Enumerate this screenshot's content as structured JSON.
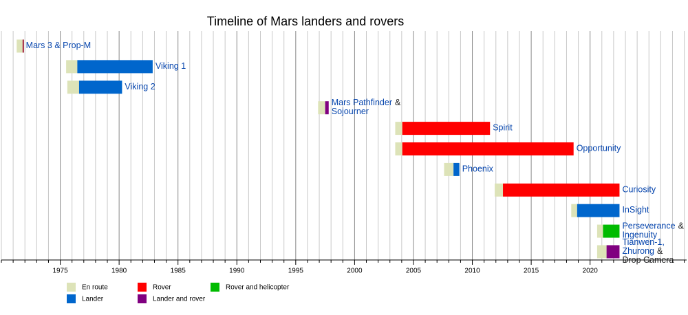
{
  "chart_data": {
    "type": "timeline",
    "title": "Timeline of Mars landers and rovers",
    "xlim": [
      1970,
      2028.2
    ],
    "xticks": [
      1975,
      1980,
      1985,
      1990,
      1995,
      2000,
      2005,
      2010,
      2015,
      2020
    ],
    "minor_xticks": [
      1970,
      1971,
      1972,
      1973,
      1974,
      1976,
      1977,
      1978,
      1979,
      1981,
      1982,
      1983,
      1984,
      1986,
      1987,
      1988,
      1989,
      1991,
      1992,
      1993,
      1994,
      1996,
      1997,
      1998,
      1999,
      2001,
      2002,
      2003,
      2004,
      2006,
      2007,
      2008,
      2009,
      2011,
      2012,
      2013,
      2014,
      2016,
      2017,
      2018,
      2019,
      2021,
      2022,
      2023,
      2024,
      2025,
      2026,
      2027,
      2028
    ],
    "grid": true,
    "legend": [
      {
        "name": "En route",
        "color": "#dde3b8"
      },
      {
        "name": "Lander",
        "color": "#0066cc"
      },
      {
        "name": "Rover",
        "color": "#ff0000"
      },
      {
        "name": "Lander and rover",
        "color": "#800080"
      },
      {
        "name": "Rover and helicopter",
        "color": "#00bb00"
      }
    ],
    "missions": [
      {
        "label": [
          [
            {
              "text": "Mars 3 & Prop-M",
              "link": true
            }
          ]
        ],
        "segments": [
          {
            "start": 1971.3,
            "end": 1971.8,
            "color": "#dde3b8"
          },
          {
            "start": 1971.8,
            "end": 1971.85,
            "color": "#a0203a"
          }
        ]
      },
      {
        "label": [
          [
            {
              "text": "Viking 1",
              "link": true
            }
          ]
        ],
        "segments": [
          {
            "start": 1975.5,
            "end": 1976.45,
            "color": "#dde3b8"
          },
          {
            "start": 1976.45,
            "end": 1982.85,
            "color": "#0066cc"
          }
        ]
      },
      {
        "label": [
          [
            {
              "text": "Viking 2",
              "link": true
            }
          ]
        ],
        "segments": [
          {
            "start": 1975.6,
            "end": 1976.6,
            "color": "#dde3b8"
          },
          {
            "start": 1976.6,
            "end": 1980.25,
            "color": "#0066cc"
          }
        ]
      },
      {
        "label": [
          [
            {
              "text": "Mars Pathfinder",
              "link": true
            },
            {
              "text": "&",
              "link": false
            }
          ],
          [
            {
              "text": "Sojourner",
              "link": true
            }
          ]
        ],
        "segments": [
          {
            "start": 1996.9,
            "end": 1997.5,
            "color": "#dde3b8"
          },
          {
            "start": 1997.5,
            "end": 1997.8,
            "color": "#800080"
          }
        ]
      },
      {
        "label": [
          [
            {
              "text": "Spirit",
              "link": true
            }
          ]
        ],
        "segments": [
          {
            "start": 2003.45,
            "end": 2004.05,
            "color": "#dde3b8"
          },
          {
            "start": 2004.05,
            "end": 2011.5,
            "color": "#ff0000"
          }
        ]
      },
      {
        "label": [
          [
            {
              "text": "Opportunity",
              "link": true
            }
          ]
        ],
        "segments": [
          {
            "start": 2003.45,
            "end": 2004.05,
            "color": "#dde3b8"
          },
          {
            "start": 2004.05,
            "end": 2018.6,
            "color": "#ff0000"
          }
        ]
      },
      {
        "label": [
          [
            {
              "text": "Phoenix",
              "link": true
            }
          ]
        ],
        "segments": [
          {
            "start": 2007.6,
            "end": 2008.4,
            "color": "#dde3b8"
          },
          {
            "start": 2008.4,
            "end": 2008.9,
            "color": "#0066cc"
          }
        ]
      },
      {
        "label": [
          [
            {
              "text": "Curiosity",
              "link": true
            }
          ]
        ],
        "segments": [
          {
            "start": 2011.9,
            "end": 2012.6,
            "color": "#dde3b8"
          },
          {
            "start": 2012.6,
            "end": 2022.5,
            "color": "#ff0000"
          }
        ]
      },
      {
        "label": [
          [
            {
              "text": "InSight",
              "link": true
            }
          ]
        ],
        "segments": [
          {
            "start": 2018.4,
            "end": 2018.9,
            "color": "#dde3b8"
          },
          {
            "start": 2018.9,
            "end": 2022.5,
            "color": "#0066cc"
          }
        ]
      },
      {
        "label": [
          [
            {
              "text": "Perseverance",
              "link": true
            },
            {
              "text": "&",
              "link": false
            }
          ],
          [
            {
              "text": "Ingenuity",
              "link": true
            }
          ]
        ],
        "segments": [
          {
            "start": 2020.6,
            "end": 2021.1,
            "color": "#dde3b8"
          },
          {
            "start": 2021.1,
            "end": 2022.5,
            "color": "#00bb00"
          }
        ]
      },
      {
        "label": [
          [
            {
              "text": "Tianwen-1,",
              "link": true
            }
          ],
          [
            {
              "text": "Zhurong",
              "link": true
            },
            {
              "text": "&",
              "link": false
            }
          ],
          [
            {
              "text": "Drop Camera",
              "link": false
            }
          ]
        ],
        "segments": [
          {
            "start": 2020.6,
            "end": 2021.4,
            "color": "#dde3b8"
          },
          {
            "start": 2021.4,
            "end": 2022.5,
            "color": "#800080"
          }
        ]
      }
    ]
  }
}
